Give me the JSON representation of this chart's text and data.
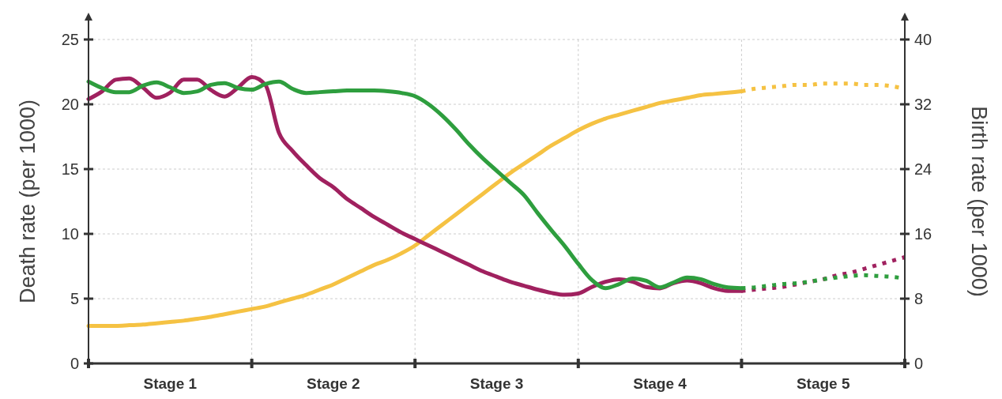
{
  "chart_data": {
    "type": "line",
    "ylabel": "Death rate (per 1000)",
    "y2label": "Birth rate (per 1000)",
    "categories": [
      null,
      null,
      null,
      null,
      null,
      null,
      "Stage 1",
      null,
      null,
      null,
      null,
      null,
      null,
      null,
      null,
      null,
      null,
      null,
      "Stage 2",
      null,
      null,
      null,
      null,
      null,
      null,
      null,
      null,
      null,
      null,
      null,
      "Stage 3",
      null,
      null,
      null,
      null,
      null,
      null,
      null,
      null,
      null,
      null,
      null,
      "Stage 4",
      null,
      null,
      null,
      null,
      null,
      null,
      null,
      null,
      null,
      null,
      null,
      "Stage 5",
      null,
      null,
      null,
      null,
      null,
      null
    ],
    "ylim": [
      0,
      25
    ],
    "yticks": [
      0,
      5,
      10,
      15,
      20,
      25
    ],
    "y2lim": [
      0,
      40
    ],
    "y2ticks": [
      0,
      8,
      16,
      24,
      32,
      40
    ],
    "grid": true,
    "series": [
      {
        "color": "#f5c243",
        "line_style": "solid",
        "values": [
          2.9,
          2.9,
          2.9,
          2.95,
          3.0,
          3.1,
          3.2,
          3.3,
          3.45,
          3.6,
          3.8,
          4.0,
          4.2,
          4.4,
          4.7,
          5.0,
          5.3,
          5.7,
          6.1,
          6.6,
          7.1,
          7.6,
          8.0,
          8.5,
          9.1,
          9.9,
          10.7,
          11.5,
          12.3,
          13.1,
          13.9,
          14.7,
          15.4,
          16.1,
          16.8,
          17.4,
          18.0,
          18.5,
          18.9,
          19.2,
          19.5,
          19.8,
          20.1,
          20.3,
          20.5,
          20.7,
          20.8,
          20.9,
          21.0,
          null,
          null,
          null,
          null,
          null,
          null,
          null,
          null,
          null,
          null,
          null,
          null
        ]
      },
      {
        "color": "#f5c243",
        "line_style": "dotted",
        "values": [
          null,
          null,
          null,
          null,
          null,
          null,
          null,
          null,
          null,
          null,
          null,
          null,
          null,
          null,
          null,
          null,
          null,
          null,
          null,
          null,
          null,
          null,
          null,
          null,
          null,
          null,
          null,
          null,
          null,
          null,
          null,
          null,
          null,
          null,
          null,
          null,
          null,
          null,
          null,
          null,
          null,
          null,
          null,
          null,
          null,
          null,
          null,
          null,
          21.0,
          21.2,
          21.3,
          21.4,
          21.5,
          21.5,
          21.6,
          21.6,
          21.6,
          21.5,
          21.5,
          21.4,
          21.2
        ]
      },
      {
        "color": "#a0215f",
        "line_style": "solid",
        "values": [
          20.4,
          21.0,
          21.9,
          22.0,
          21.3,
          20.5,
          20.9,
          21.9,
          21.9,
          21.1,
          20.6,
          21.3,
          22.1,
          21.5,
          17.8,
          16.4,
          15.3,
          14.3,
          13.6,
          12.7,
          12.0,
          11.3,
          10.7,
          10.1,
          9.6,
          9.1,
          8.6,
          8.1,
          7.6,
          7.1,
          6.7,
          6.3,
          6.0,
          5.7,
          5.45,
          5.3,
          5.4,
          5.9,
          6.3,
          6.5,
          6.3,
          5.9,
          5.8,
          6.2,
          6.4,
          6.2,
          5.8,
          5.6,
          5.6,
          null,
          null,
          null,
          null,
          null,
          null,
          null,
          null,
          null,
          null,
          null,
          null
        ]
      },
      {
        "color": "#a0215f",
        "line_style": "dotted",
        "values": [
          null,
          null,
          null,
          null,
          null,
          null,
          null,
          null,
          null,
          null,
          null,
          null,
          null,
          null,
          null,
          null,
          null,
          null,
          null,
          null,
          null,
          null,
          null,
          null,
          null,
          null,
          null,
          null,
          null,
          null,
          null,
          null,
          null,
          null,
          null,
          null,
          null,
          null,
          null,
          null,
          null,
          null,
          null,
          null,
          null,
          null,
          null,
          null,
          5.6,
          5.7,
          5.8,
          5.9,
          6.1,
          6.3,
          6.5,
          6.8,
          7.0,
          7.3,
          7.6,
          7.9,
          8.2
        ]
      },
      {
        "color": "#2e9e3e",
        "line_style": "solid",
        "axis": "y2",
        "values": [
          34.8,
          34.0,
          33.5,
          33.5,
          34.3,
          34.7,
          34.1,
          33.4,
          33.6,
          34.4,
          34.6,
          34.0,
          33.8,
          34.5,
          34.8,
          33.9,
          33.4,
          33.5,
          33.6,
          33.7,
          33.7,
          33.7,
          33.6,
          33.4,
          33.0,
          32.0,
          30.6,
          28.9,
          27.0,
          25.3,
          23.8,
          22.3,
          20.8,
          18.6,
          16.5,
          14.5,
          12.3,
          10.3,
          9.3,
          9.8,
          10.5,
          10.2,
          9.4,
          10.0,
          10.6,
          10.4,
          9.8,
          9.4,
          9.3,
          null,
          null,
          null,
          null,
          null,
          null,
          null,
          null,
          null,
          null,
          null,
          null
        ]
      },
      {
        "color": "#2e9e3e",
        "line_style": "dotted",
        "axis": "y2",
        "values": [
          null,
          null,
          null,
          null,
          null,
          null,
          null,
          null,
          null,
          null,
          null,
          null,
          null,
          null,
          null,
          null,
          null,
          null,
          null,
          null,
          null,
          null,
          null,
          null,
          null,
          null,
          null,
          null,
          null,
          null,
          null,
          null,
          null,
          null,
          null,
          null,
          null,
          null,
          null,
          null,
          null,
          null,
          null,
          null,
          null,
          null,
          null,
          null,
          9.3,
          9.4,
          9.6,
          9.8,
          9.9,
          10.1,
          10.4,
          10.6,
          10.8,
          10.9,
          10.8,
          10.7,
          10.5
        ]
      }
    ]
  }
}
